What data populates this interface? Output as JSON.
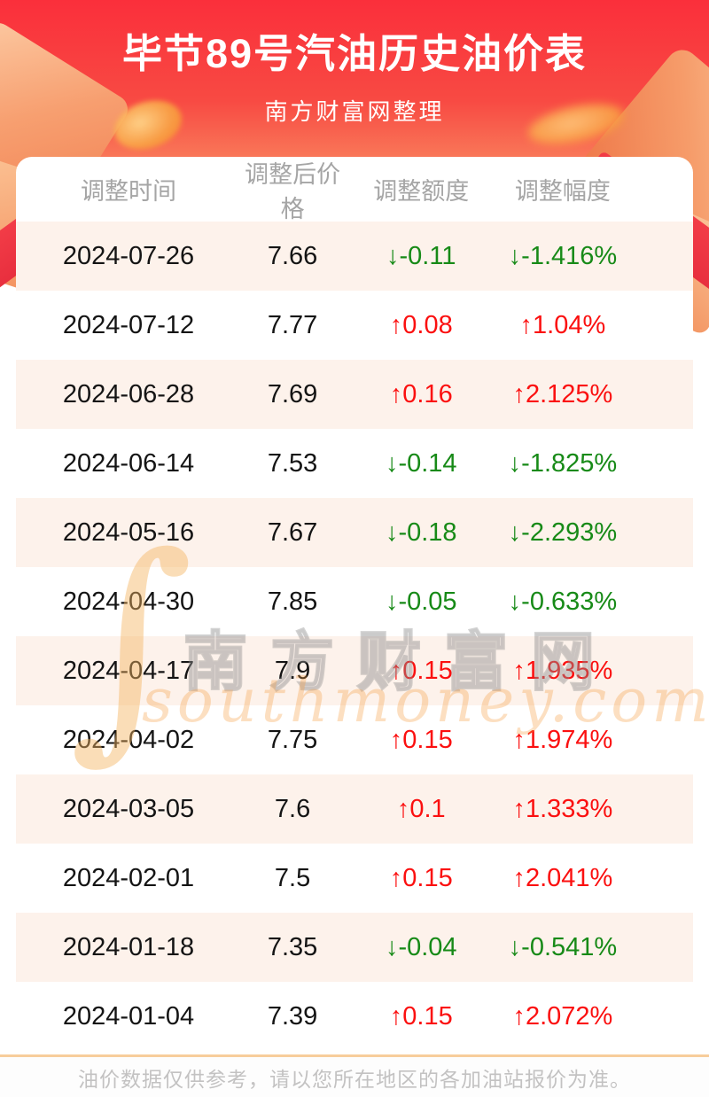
{
  "page": {
    "title": "毕节89号汽油历史油价表",
    "subtitle": "南方财富网整理",
    "footer_note": "油价数据仅供参考，请以您所在地区的各加油站报价为准。"
  },
  "watermark": {
    "cn": "南方财富网",
    "en": "southmoney.com",
    "swoosh_glyph": "∫"
  },
  "table": {
    "headers": [
      "调整时间",
      "调整后价格",
      "调整额度",
      "调整幅度"
    ],
    "arrows": {
      "up": "↑",
      "down": "↓"
    },
    "rows": [
      {
        "date": "2024-07-26",
        "price": "7.66",
        "change": "-0.11",
        "pct": "-1.416%",
        "dir": "down"
      },
      {
        "date": "2024-07-12",
        "price": "7.77",
        "change": "0.08",
        "pct": "1.04%",
        "dir": "up"
      },
      {
        "date": "2024-06-28",
        "price": "7.69",
        "change": "0.16",
        "pct": "2.125%",
        "dir": "up"
      },
      {
        "date": "2024-06-14",
        "price": "7.53",
        "change": "-0.14",
        "pct": "-1.825%",
        "dir": "down"
      },
      {
        "date": "2024-05-16",
        "price": "7.67",
        "change": "-0.18",
        "pct": "-2.293%",
        "dir": "down"
      },
      {
        "date": "2024-04-30",
        "price": "7.85",
        "change": "-0.05",
        "pct": "-0.633%",
        "dir": "down"
      },
      {
        "date": "2024-04-17",
        "price": "7.9",
        "change": "0.15",
        "pct": "1.935%",
        "dir": "up"
      },
      {
        "date": "2024-04-02",
        "price": "7.75",
        "change": "0.15",
        "pct": "1.974%",
        "dir": "up"
      },
      {
        "date": "2024-03-05",
        "price": "7.6",
        "change": "0.1",
        "pct": "1.333%",
        "dir": "up"
      },
      {
        "date": "2024-02-01",
        "price": "7.5",
        "change": "0.15",
        "pct": "2.041%",
        "dir": "up"
      },
      {
        "date": "2024-01-18",
        "price": "7.35",
        "change": "-0.04",
        "pct": "-0.541%",
        "dir": "down"
      },
      {
        "date": "2024-01-04",
        "price": "7.39",
        "change": "0.15",
        "pct": "2.072%",
        "dir": "up"
      }
    ]
  },
  "colors": {
    "banner_red_top": "#fa2f3b",
    "banner_salmon": "#f99d74",
    "up_red": "#fb1010",
    "down_green": "#178a17",
    "row_stripe_pink": "#fdf2eb",
    "header_text_gray": "#a5a5a5",
    "footer_line_orange": "#f7cd9b",
    "footer_text_gray": "#c3c2c2"
  }
}
